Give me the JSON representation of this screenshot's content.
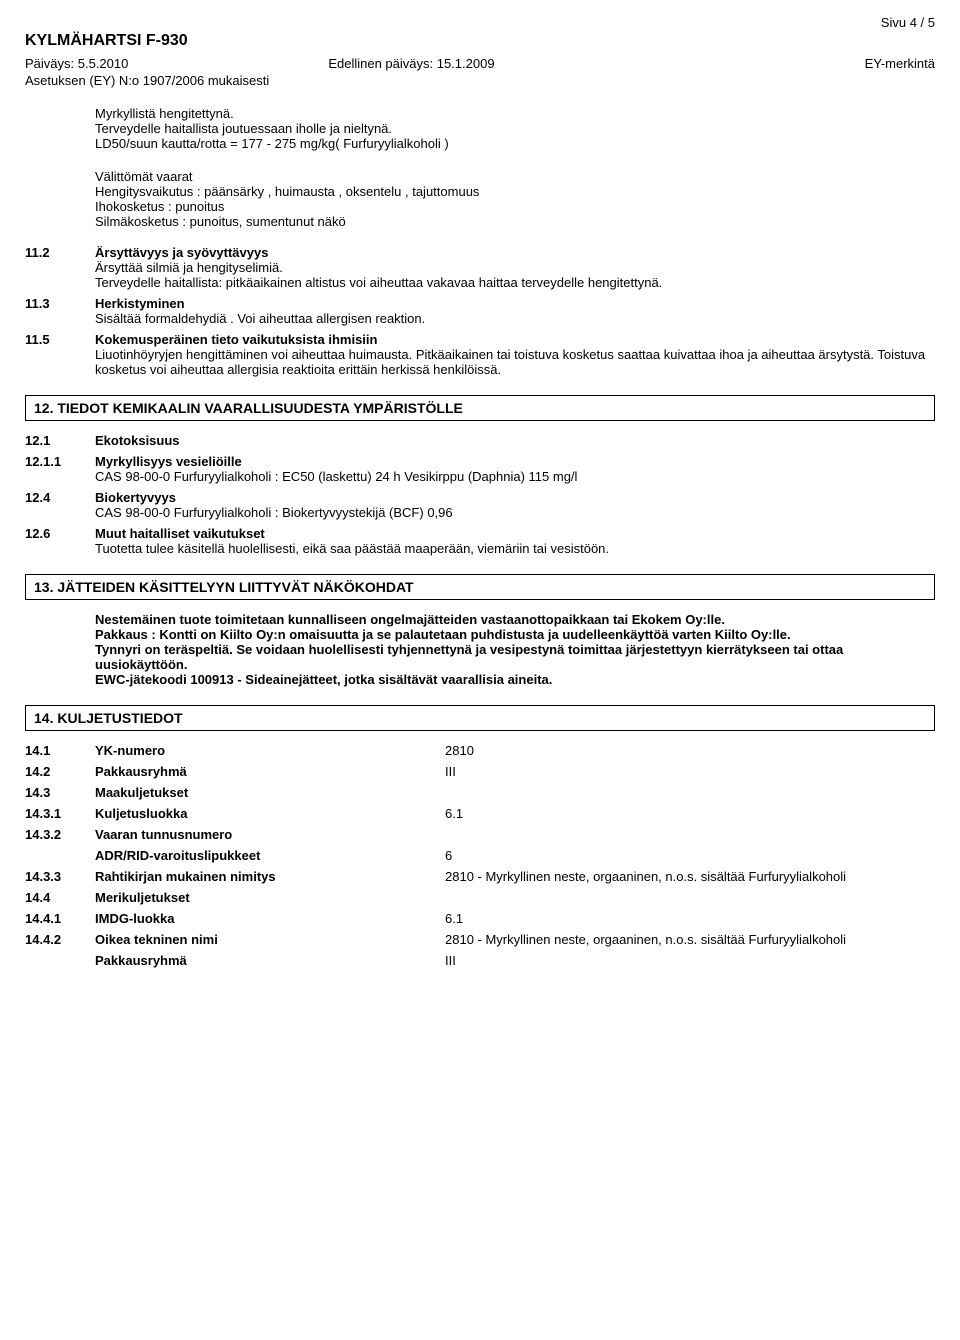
{
  "page_indicator": "Sivu  4 / 5",
  "doc_title": "KYLMÄHARTSI F-930",
  "date_label": "Päiväys: 5.5.2010",
  "prev_date_label": "Edellinen päiväys: 15.1.2009",
  "ey_mark": "EY-merkintä",
  "regulation_line": "Asetuksen (EY) N:o 1907/2006 mukaisesti",
  "intro_block": {
    "l1": "Myrkyllistä hengitettynä.",
    "l2": "Terveydelle haitallista joutuessaan iholle ja nieltynä.",
    "l3": "LD50/suun kautta/rotta =  177 - 275 mg/kg( Furfuryylialkoholi )"
  },
  "immediate": {
    "heading": "Välittömät vaarat",
    "l1": "Hengitysvaikutus : päänsärky  , huimausta , oksentelu , tajuttomuus",
    "l2": "Ihokosketus : punoitus",
    "l3": "Silmäkosketus   : punoitus, sumentunut näkö"
  },
  "s11_2": {
    "num": "11.2",
    "heading": "Ärsyttävyys ja syövyttävyys",
    "l1": "Ärsyttää silmiä ja hengityselimiä.",
    "l2": "Terveydelle haitallista: pitkäaikainen altistus voi aiheuttaa vakavaa haittaa terveydelle hengitettynä."
  },
  "s11_3": {
    "num": "11.3",
    "heading": "Herkistyminen",
    "l1": "Sisältää formaldehydiä . Voi aiheuttaa allergisen reaktion."
  },
  "s11_5": {
    "num": "11.5",
    "heading": "Kokemusperäinen tieto vaikutuksista ihmisiin",
    "l1": "Liuotinhöyryjen hengittäminen voi aiheuttaa huimausta. Pitkäaikainen tai toistuva kosketus saattaa kuivattaa ihoa ja aiheuttaa ärsytystä.  Toistuva kosketus voi aiheuttaa allergisia reaktioita erittäin herkissä henkilöissä."
  },
  "sec12": {
    "header": "12. TIEDOT KEMIKAALIN VAARALLISUUDESTA YMPÄRISTÖLLE",
    "s12_1_num": "12.1",
    "s12_1_label": "Ekotoksisuus",
    "s12_1_1_num": "12.1.1",
    "s12_1_1_label": "Myrkyllisyys vesieliöille",
    "s12_1_1_text": "CAS 98-00-0 Furfuryylialkoholi : EC50 (laskettu) 24 h Vesikirppu (Daphnia)  115 mg/l",
    "s12_4_num": "12.4",
    "s12_4_label": "Biokertyvyys",
    "s12_4_text": "CAS 98-00-0 Furfuryylialkoholi : Biokertyvyystekijä (BCF) 0,96",
    "s12_6_num": "12.6",
    "s12_6_label": "Muut haitalliset vaikutukset",
    "s12_6_text": "Tuotetta tulee käsitellä huolellisesti, eikä saa päästää maaperään, viemäriin tai vesistöön."
  },
  "sec13": {
    "header": "13. JÄTTEIDEN KÄSITTELYYN LIITTYVÄT NÄKÖKOHDAT",
    "p1": "Nestemäinen tuote toimitetaan kunnalliseen ongelmajätteiden vastaanottopaikkaan tai Ekokem Oy:lle.",
    "p2": "Pakkaus : Kontti on Kiilto Oy:n omaisuutta ja se palautetaan puhdistusta ja uudelleenkäyttöä varten Kiilto Oy:lle.",
    "p3": "Tynnyri on teräspeltiä. Se voidaan huolellisesti tyhjennettynä ja vesipestynä toimittaa järjestettyyn kierrätykseen tai ottaa uusiokäyttöön.",
    "p4": "EWC-jätekoodi 100913 - Sideainejätteet, jotka sisältävät vaarallisia aineita."
  },
  "sec14": {
    "header": "14. KULJETUSTIEDOT",
    "rows": [
      {
        "num": "14.1",
        "label": "YK-numero",
        "val": "2810"
      },
      {
        "num": "14.2",
        "label": "Pakkausryhmä",
        "val": "III"
      },
      {
        "num": "14.3",
        "label": "Maakuljetukset",
        "val": ""
      },
      {
        "num": "14.3.1",
        "label": "Kuljetusluokka",
        "val": "6.1"
      },
      {
        "num": "14.3.2",
        "label": "Vaaran tunnusnumero",
        "val": ""
      },
      {
        "num": "",
        "label": "ADR/RID-varoituslipukkeet",
        "val": "6"
      },
      {
        "num": "14.3.3",
        "label": "Rahtikirjan mukainen nimitys",
        "val": "2810 - Myrkyllinen neste, orgaaninen, n.o.s.  sisältää Furfuryylialkoholi"
      },
      {
        "num": "14.4",
        "label": "Merikuljetukset",
        "val": ""
      },
      {
        "num": "14.4.1",
        "label": "IMDG-luokka",
        "val": "6.1"
      },
      {
        "num": "14.4.2",
        "label": "Oikea tekninen nimi",
        "val": "2810 - Myrkyllinen neste, orgaaninen, n.o.s.  sisältää Furfuryylialkoholi"
      },
      {
        "num": "",
        "label": "Pakkausryhmä",
        "val": "III"
      }
    ]
  }
}
